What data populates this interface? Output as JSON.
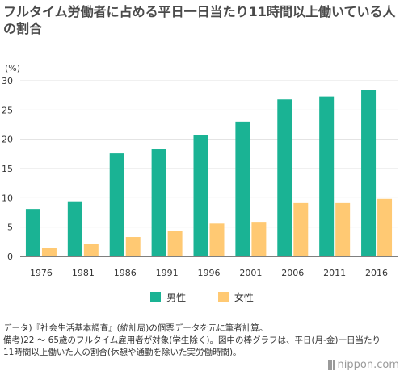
{
  "title": "フルタイム労働者に占める平日一日当たり11時間以上働いている人の割合",
  "chart_data": {
    "type": "bar",
    "y_unit": "(%)",
    "ylim": [
      0,
      30
    ],
    "yticks": [
      0,
      5,
      10,
      15,
      20,
      25,
      30
    ],
    "grid": true,
    "legend_position": "bottom-center",
    "categories": [
      "1976",
      "1981",
      "1986",
      "1991",
      "1996",
      "2001",
      "2006",
      "2011",
      "2016"
    ],
    "series": [
      {
        "name": "男性",
        "color": "#1ab394",
        "values": [
          8.1,
          9.4,
          17.6,
          18.3,
          20.7,
          23.0,
          26.8,
          27.3,
          28.4
        ]
      },
      {
        "name": "女性",
        "color": "#ffc973",
        "values": [
          1.5,
          2.1,
          3.3,
          4.3,
          5.6,
          5.9,
          9.1,
          9.1,
          9.8
        ]
      }
    ]
  },
  "note_lines": [
    "データ)『社会生活基本調査』(統計局)の個票データを元に筆者計算。",
    "備考)22 ～ 65歳のフルタイム雇用者が対象(学生除く)。図中の棒グラフは、平日(月-金)一日当たり11時間以上働いた人の割合(休憩や通勤を除いた実労働時間)。"
  ],
  "logo_text": "nippon.com",
  "colors": {
    "gridline": "#e0e0e0",
    "axis": "#333333"
  }
}
